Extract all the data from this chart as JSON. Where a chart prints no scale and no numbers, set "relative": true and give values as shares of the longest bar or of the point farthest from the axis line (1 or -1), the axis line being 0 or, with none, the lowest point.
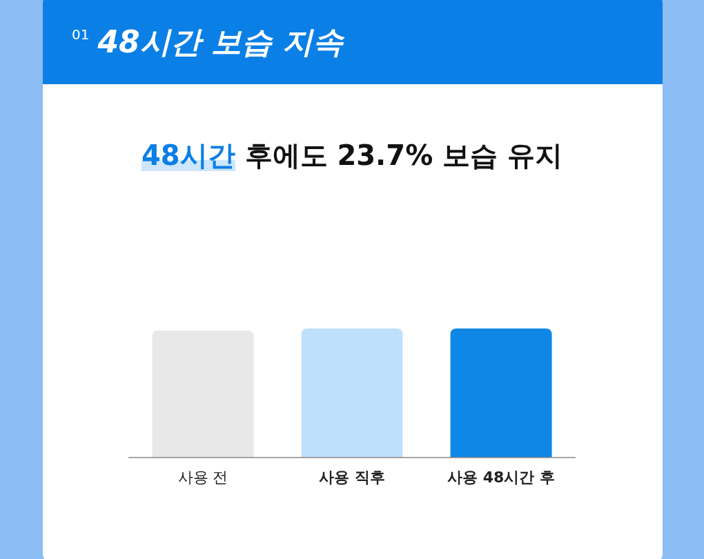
{
  "chart_data": {
    "type": "bar",
    "title": "48시간 보습 지속",
    "subtitle": "48시간 후에도 23.7% 보습 유지",
    "annotations": [
      "01"
    ],
    "categories": [
      "사용 전",
      "사용 직후",
      "사용 48시간 후"
    ],
    "values": [
      0.984,
      1,
      1
    ],
    "colors": [
      "#e8e8e8",
      "#bfe0fb",
      "#0f87e6"
    ],
    "relative": true,
    "grid": false,
    "legend": false
  }
}
